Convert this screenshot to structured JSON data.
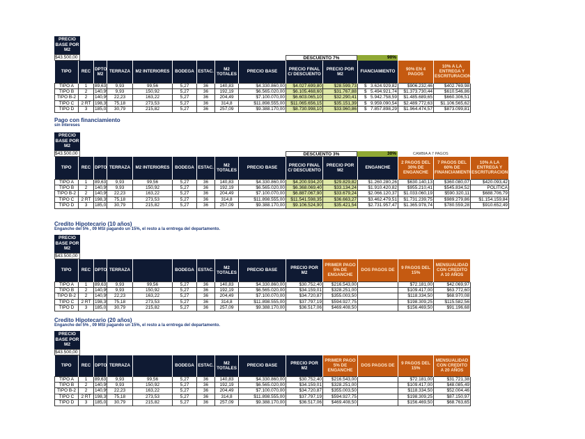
{
  "colors": {
    "header_dark": "#0f1a33",
    "header_orange": "#c55a11",
    "highlight_green": "#dfe8a8",
    "percent_green": "#8fa834",
    "title_blue": "#1f3a78"
  },
  "tables": [
    {
      "title": "",
      "subtitle": "",
      "base_label": "PRECIO BASE POR M2",
      "base_value": "$43.500,00",
      "discount_label": "DESCUENTO 7%",
      "discount_pct": "90%",
      "note": "",
      "headers": [
        {
          "label": "TIPO"
        },
        {
          "label": "REC"
        },
        {
          "label": "DPTO M2"
        },
        {
          "label": "TERRAZA"
        },
        {
          "label": "M2 INTERIORES"
        },
        {
          "label": "BODEGA"
        },
        {
          "label": "ESTAC."
        },
        {
          "label": "M2 TOTALES"
        },
        {
          "label": "PRECIO BASE"
        },
        {
          "label": "PRECIO FINAL C/ DESCUENTO"
        },
        {
          "label": "PRECIO POR M2"
        },
        {
          "label": "FIANCIAMIENTO"
        },
        {
          "label": "90% EN 4 PAGOS",
          "style": "orange"
        },
        {
          "label": "10% A LA ENTREGA Y ESCRITURACION",
          "style": "orange"
        }
      ],
      "rows": [
        [
          "TIPO A",
          "1",
          "89,63",
          "9,93",
          "99,56",
          "5,27",
          "36",
          "140,83",
          "$4.330.860,00",
          "$4.027.699,80",
          "$28.599,73",
          "$   3.624.929,82",
          "$906.232,46",
          "$402.769,98"
        ],
        [
          "TIPO B",
          "2",
          "140,99",
          "9,93",
          "150,92",
          "5,27",
          "36",
          "192,19",
          "$6.565.020,00",
          "$6.105.468,60",
          "$31.767,88",
          "$   5.494.921,74",
          "$1.373.730,44",
          "$610.546,86"
        ],
        [
          "TIPO B-2",
          "2",
          "140,99",
          "22,23",
          "163,22",
          "5,27",
          "36",
          "204,49",
          "$7.100.070,00",
          "$6.603.065,10",
          "$32.290,41",
          "$   5.942.758,59",
          "$1.485.689,65",
          "$660.306,51"
        ],
        [
          "TIPO C",
          "2 RT",
          "198,35",
          "75,18",
          "273,53",
          "5,27",
          "36",
          "314,8",
          "$11.898.555,00",
          "$11.065.656,15",
          "$35.151,39",
          "$   9.959.090,54",
          "$2.489.772,63",
          "$1.106.565,62"
        ],
        [
          "TIPO D",
          "3",
          "185,03",
          "30,79",
          "215,82",
          "5,27",
          "36",
          "257,09",
          "$9.388.170,00",
          "$8.730.998,10",
          "$33.960,86",
          "$   7.857.898,29",
          "$1.964.474,57",
          "$873.099,81"
        ]
      ]
    },
    {
      "title": "Pago con financiamiento",
      "subtitle": "sin intereses",
      "base_label": "PRECIO BASE POR M2",
      "base_value": "$43.500,00",
      "discount_label": "DESCUENTO 3%",
      "discount_pct": "30%",
      "note": "CAMBIA A 7 PAGOS",
      "headers": [
        {
          "label": "TIPO"
        },
        {
          "label": "REC"
        },
        {
          "label": "DPTO"
        },
        {
          "label": "TERRAZA"
        },
        {
          "label": "M2 INTERIORES"
        },
        {
          "label": "BODEGA"
        },
        {
          "label": "ESTAC."
        },
        {
          "label": "M2 TOTALES"
        },
        {
          "label": "PRECIO BASE"
        },
        {
          "label": "PRECIO FINAL C/ DESCUENTO"
        },
        {
          "label": "PRECIO POR M2"
        },
        {
          "label": "ENGANCHE"
        },
        {
          "label": "2 PAGOS DEL 30% DE ENGANCHE",
          "style": "orange"
        },
        {
          "label": "7 PAGOS DEL 60% DE FINANCIAMIENTO",
          "style": "orange"
        },
        {
          "label": "10% A LA ENTREGA Y ESCRITURACION",
          "style": "orange"
        }
      ],
      "rows": [
        [
          "TIPO A",
          "1",
          "89,63",
          "9,93",
          "99,56",
          "5,27",
          "36",
          "140,83",
          "$4.330.860,00",
          "$4.200.934,20",
          "$29.829,82",
          "$1.260.280,26",
          "$630.140,13",
          "$360.080,07",
          "$420.093,42"
        ],
        [
          "TIPO B",
          "2",
          "140,99",
          "9,93",
          "150,92",
          "5,27",
          "36",
          "192,19",
          "$6.565.020,00",
          "$6.368.069,40",
          "$33.134,24",
          "$1.910.420,82",
          "$955.210,41",
          "$545.834,52",
          "POLITICA"
        ],
        [
          "TIPO B-2",
          "2",
          "140,99",
          "22,23",
          "163,22",
          "5,27",
          "36",
          "204,49",
          "$7.100.070,00",
          "$6.887.067,90",
          "$33.679,24",
          "$2.066.120,37",
          "$1.033.060,19",
          "$590.320,11",
          "$688.706,79"
        ],
        [
          "TIPO C",
          "2 RT",
          "198,35",
          "75,18",
          "273,53",
          "5,27",
          "36",
          "314,8",
          "$11.898.555,00",
          "$11.541.598,35",
          "$36.663,27",
          "$3.462.479,51",
          "$1.731.239,75",
          "$989.279,86",
          "$1.154.159,84"
        ],
        [
          "TIPO D",
          "3",
          "185,03",
          "30,79",
          "215,82",
          "5,27",
          "36",
          "257,09",
          "$9.388.170,00",
          "$9.106.524,90",
          "$35.421,54",
          "$2.731.957,47",
          "$1.365.978,74",
          "$780.559,28",
          "$910.652,49"
        ]
      ]
    },
    {
      "title": "Credito Hipotecario (10 años)",
      "subtitle": "Enganche del 5% , 09 MSI pagando un 15%,  el resto a la erntrega del departamento.",
      "base_label": "PRECIO BASE POR M2",
      "base_value": "$43.500,00",
      "discount_label": "",
      "discount_pct": "",
      "note": "",
      "headers": [
        {
          "label": "TIPO"
        },
        {
          "label": "REC"
        },
        {
          "label": "DPTO"
        },
        {
          "label": "TERRAZA"
        },
        {
          "label": ""
        },
        {
          "label": "BODEGA"
        },
        {
          "label": "ESTAC."
        },
        {
          "label": "M2 TOTALES"
        },
        {
          "label": "PRECIO BASE"
        },
        {
          "label": "PRECIO POR M2"
        },
        {
          "label": "PRIMER PAGO 5% DE ENGANCHE",
          "style": "orange"
        },
        {
          "label": "DOS PAGOS DE",
          "style": "orange"
        },
        {
          "label": "9 PAGOS DEL 15%",
          "style": "orange"
        },
        {
          "label": "MENSUALIDAD CON CREDITO A 10 AÑOS",
          "style": "orange"
        }
      ],
      "rows": [
        [
          "TIPO A",
          "1",
          "89,63",
          "9,93",
          "99,56",
          "5,27",
          "36",
          "140,83",
          "$4.330.860,00",
          "$30.752,40",
          "$216.543,00",
          "",
          "$72.181,00",
          "$42.069,97"
        ],
        [
          "TIPO B",
          "2",
          "140,99",
          "9,93",
          "150,92",
          "5,27",
          "36",
          "192,19",
          "$6.565.020,00",
          "$34.159,01",
          "$328.251,00",
          "",
          "$109.417,00",
          "$63.772,60"
        ],
        [
          "TIPO B-2",
          "2",
          "140,99",
          "22,23",
          "163,22",
          "5,27",
          "36",
          "204,49",
          "$7.100.070,00",
          "$34.720,87",
          "$355.003,50",
          "",
          "$118.334,50",
          "$68.970,08"
        ],
        [
          "TIPO C",
          "2 RT",
          "198,35",
          "75,18",
          "273,53",
          "5,27",
          "36",
          "314,8",
          "$11.898.555,00",
          "$37.797,19",
          "$594.927,75",
          "",
          "$198.309,25",
          "$115.582,56"
        ],
        [
          "TIPO D",
          "3",
          "185,03",
          "30,79",
          "215,82",
          "5,27",
          "36",
          "257,09",
          "$9.388.170,00",
          "$36.517,06",
          "$469.408,50",
          "",
          "$156.469,50",
          "$91.196,68"
        ]
      ]
    },
    {
      "title": "Credito Hipotecario (20 años)",
      "subtitle": "Enganche del 5% , 09 MSI pagando un 15%,  el resto a la erntrega del departamento.",
      "base_label": "PRECIO BASE POR M2",
      "base_value": "$43.500,00",
      "discount_label": "",
      "discount_pct": "",
      "note": "",
      "headers": [
        {
          "label": "TIPO"
        },
        {
          "label": "REC"
        },
        {
          "label": "DPTO"
        },
        {
          "label": "TERRAZA"
        },
        {
          "label": ""
        },
        {
          "label": "BODEGA"
        },
        {
          "label": "ESTAC."
        },
        {
          "label": "M2 TOTALES"
        },
        {
          "label": "PRECIO BASE"
        },
        {
          "label": "PRECIO POR M2"
        },
        {
          "label": "PRIMER PAGO 5% DE ENGANCHE",
          "style": "orange"
        },
        {
          "label": "DOS PAGOS DE",
          "style": "orange"
        },
        {
          "label": "9 PAGOS DEL 15%",
          "style": "orange"
        },
        {
          "label": "MENSUALIDAD CON CREDITO A 20 AÑOS",
          "style": "orange"
        }
      ],
      "rows": [
        [
          "TIPO A",
          "1",
          "89,63",
          "9,93",
          "99,56",
          "5,27",
          "36",
          "140,83",
          "$4.330.860,00",
          "$30.752,40",
          "$216.543,00",
          "",
          "$72.181,00",
          "$31.721,38"
        ],
        [
          "TIPO B",
          "2",
          "140,99",
          "9,93",
          "150,92",
          "5,27",
          "36",
          "192,19",
          "$6.565.020,00",
          "$34.159,01",
          "$328.251,00",
          "",
          "$109.417,00",
          "$48.085,49"
        ],
        [
          "TIPO B-2",
          "2",
          "140,99",
          "22,23",
          "163,22",
          "5,27",
          "36",
          "204,49",
          "$7.100.070,00",
          "$34.720,87",
          "$355.003,50",
          "",
          "$118.334,50",
          "$52.004,46"
        ],
        [
          "TIPO C",
          "2 RT",
          "198,35",
          "75,18",
          "273,53",
          "5,27",
          "36",
          "314,8",
          "$11.898.555,00",
          "$37.797,19",
          "$594.927,75",
          "",
          "$198.309,25",
          "$87.150,97"
        ],
        [
          "TIPO D",
          "3",
          "185,03",
          "30,79",
          "215,82",
          "5,27",
          "36",
          "257,09",
          "$9.388.170,00",
          "$36.517,06",
          "$469.408,50",
          "",
          "$156.469,50",
          "$68.763,65"
        ]
      ]
    }
  ]
}
